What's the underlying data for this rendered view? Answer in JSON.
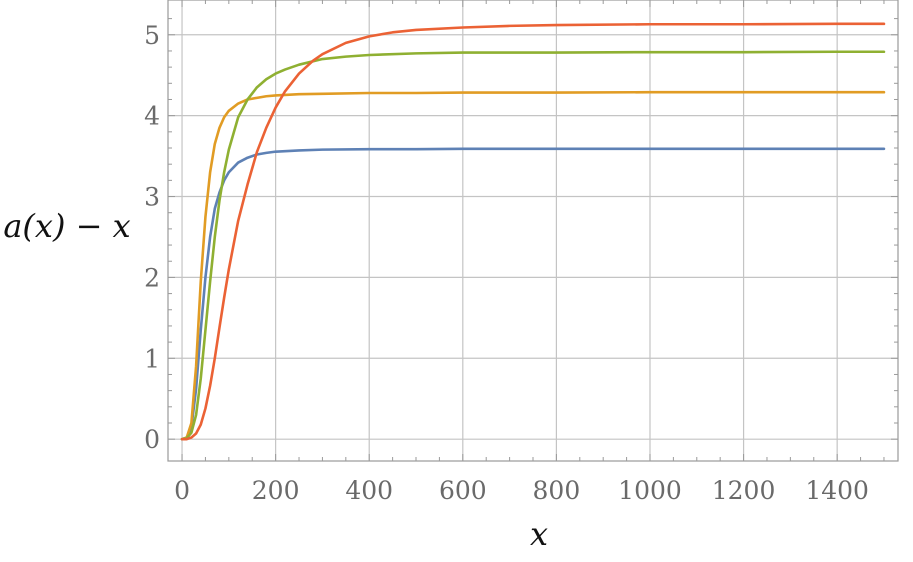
{
  "chart_data": {
    "type": "line",
    "xlabel": "x",
    "ylabel": "a(x) − x",
    "xlim": [
      -30,
      1530
    ],
    "ylim": [
      -0.27,
      5.43
    ],
    "x_ticks": [
      0,
      200,
      400,
      600,
      800,
      1000,
      1200,
      1400
    ],
    "y_ticks": [
      0,
      1,
      2,
      3,
      4,
      5
    ],
    "grid": true,
    "series": [
      {
        "color": "#5e81b5",
        "x": [
          0,
          10,
          20,
          30,
          40,
          50,
          60,
          70,
          80,
          90,
          100,
          120,
          140,
          160,
          180,
          200,
          250,
          300,
          400,
          500,
          600,
          800,
          1000,
          1200,
          1400,
          1500
        ],
        "values": [
          0,
          0.02,
          0.15,
          0.62,
          1.35,
          2.0,
          2.5,
          2.85,
          3.05,
          3.2,
          3.3,
          3.42,
          3.48,
          3.52,
          3.54,
          3.555,
          3.57,
          3.58,
          3.585,
          3.585,
          3.59,
          3.59,
          3.59,
          3.59,
          3.59,
          3.59
        ]
      },
      {
        "color": "#e19c24",
        "x": [
          0,
          10,
          20,
          30,
          40,
          50,
          60,
          70,
          80,
          90,
          100,
          120,
          140,
          160,
          180,
          200,
          250,
          300,
          400,
          500,
          600,
          800,
          1000,
          1200,
          1400,
          1500
        ],
        "values": [
          0,
          0.02,
          0.2,
          0.9,
          1.95,
          2.75,
          3.3,
          3.65,
          3.85,
          3.98,
          4.06,
          4.15,
          4.2,
          4.22,
          4.24,
          4.25,
          4.265,
          4.27,
          4.28,
          4.28,
          4.285,
          4.285,
          4.29,
          4.29,
          4.29,
          4.29
        ]
      },
      {
        "color": "#8fb032",
        "x": [
          0,
          10,
          20,
          30,
          40,
          50,
          60,
          70,
          80,
          90,
          100,
          120,
          140,
          160,
          180,
          200,
          220,
          250,
          300,
          350,
          400,
          500,
          600,
          800,
          1000,
          1200,
          1400,
          1500
        ],
        "values": [
          0,
          0.01,
          0.08,
          0.3,
          0.75,
          1.35,
          1.95,
          2.5,
          2.95,
          3.3,
          3.58,
          3.98,
          4.2,
          4.35,
          4.45,
          4.52,
          4.57,
          4.63,
          4.7,
          4.73,
          4.75,
          4.77,
          4.78,
          4.78,
          4.785,
          4.785,
          4.79,
          4.79
        ]
      },
      {
        "color": "#eb6235",
        "x": [
          0,
          10,
          20,
          30,
          40,
          50,
          60,
          70,
          80,
          90,
          100,
          120,
          140,
          160,
          180,
          200,
          220,
          250,
          280,
          300,
          350,
          400,
          450,
          500,
          600,
          700,
          800,
          1000,
          1200,
          1400,
          1500
        ],
        "values": [
          0,
          0.0,
          0.02,
          0.07,
          0.18,
          0.38,
          0.66,
          1.0,
          1.38,
          1.75,
          2.1,
          2.7,
          3.15,
          3.55,
          3.85,
          4.1,
          4.3,
          4.52,
          4.68,
          4.76,
          4.9,
          4.98,
          5.03,
          5.06,
          5.09,
          5.11,
          5.12,
          5.13,
          5.13,
          5.135,
          5.135
        ]
      }
    ]
  }
}
